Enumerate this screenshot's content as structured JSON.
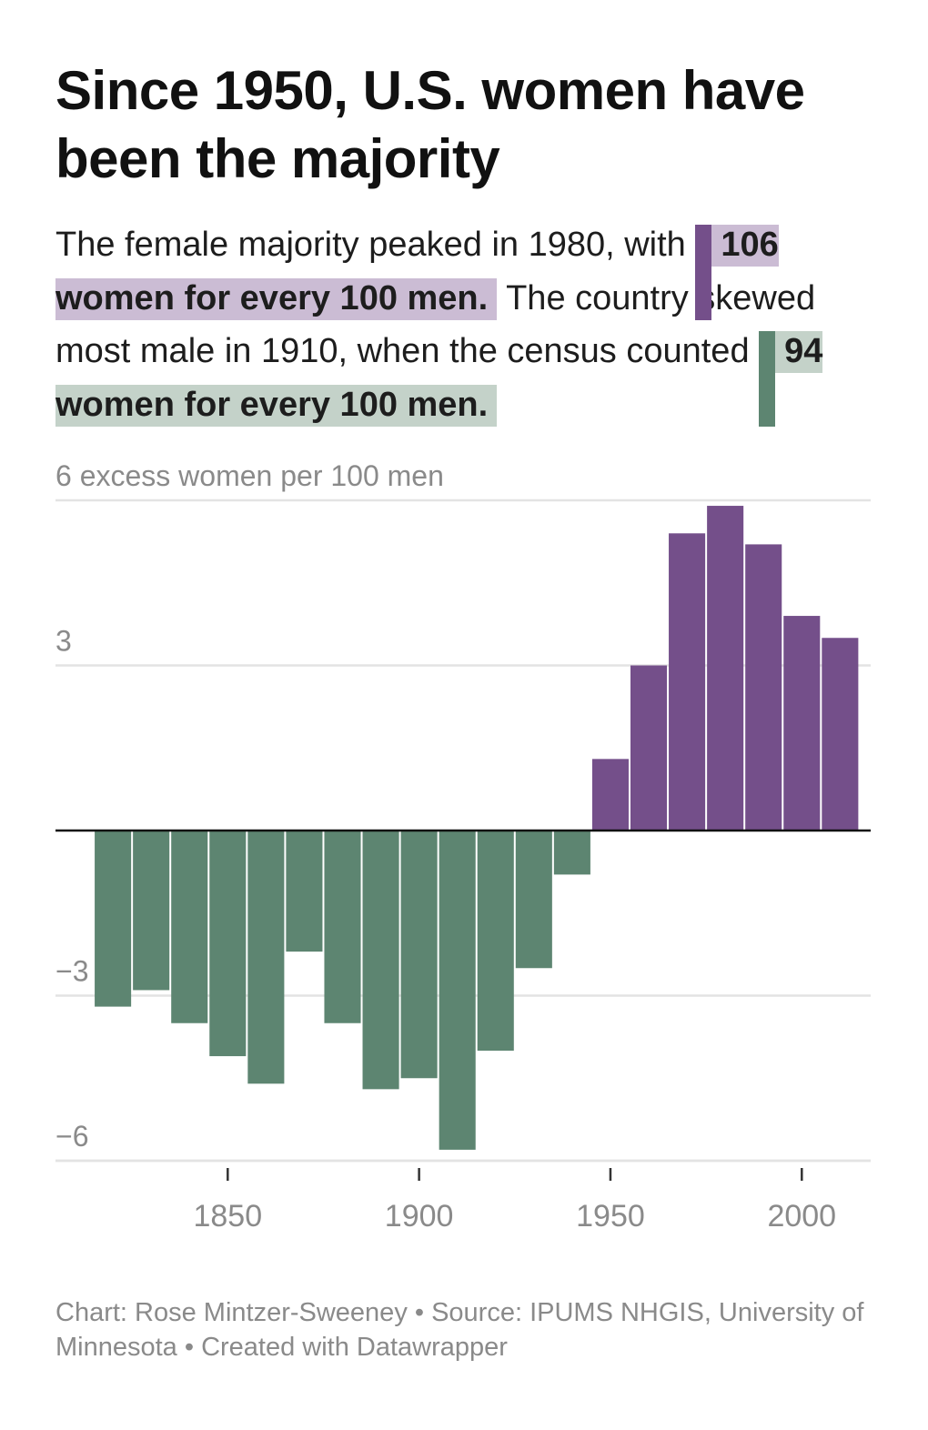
{
  "header": {
    "title": "Since 1950, U.S. women have been the majority",
    "subtitle_part1": "The female majority peaked in 1980, with",
    "highlight_female": "106 women for every 100 men.",
    "subtitle_part2": "The country skewed most male in 1910, when the census counted",
    "highlight_male": "94 women for every 100 men."
  },
  "footer": {
    "notes": "Chart: Rose Mintzer-Sweeney • Source: IPUMS NHGIS, University of Minnesota • Created with Datawrapper"
  },
  "colors": {
    "female": "#744f8a",
    "male": "#5d8571",
    "female_highlight": "#cbbcd4",
    "male_highlight": "#c4d2c9",
    "gridline": "#e3e3e3",
    "axis_text": "#8a8a8a"
  },
  "chart_data": {
    "type": "bar",
    "y_label": "6 excess women per 100 men",
    "ylim": [
      -6.3,
      6
    ],
    "y_ticks": [
      6,
      3,
      -3,
      -6
    ],
    "y_tick_labels": [
      "",
      "3",
      "−3",
      "−6"
    ],
    "x_ticks": [
      1850,
      1900,
      1950,
      2000
    ],
    "x_tick_labels": [
      "1850",
      "1900",
      "1950",
      "2000"
    ],
    "xlim": [
      1805,
      2018
    ],
    "grid": true,
    "bars": [
      {
        "year": 1820,
        "value": -3.2
      },
      {
        "year": 1830,
        "value": -2.9
      },
      {
        "year": 1840,
        "value": -3.5
      },
      {
        "year": 1850,
        "value": -4.1
      },
      {
        "year": 1860,
        "value": -4.6
      },
      {
        "year": 1870,
        "value": -2.2
      },
      {
        "year": 1880,
        "value": -3.5
      },
      {
        "year": 1890,
        "value": -4.7
      },
      {
        "year": 1900,
        "value": -4.5
      },
      {
        "year": 1910,
        "value": -5.8
      },
      {
        "year": 1920,
        "value": -4.0
      },
      {
        "year": 1930,
        "value": -2.5
      },
      {
        "year": 1940,
        "value": -0.8
      },
      {
        "year": 1950,
        "value": 1.3
      },
      {
        "year": 1960,
        "value": 3.0
      },
      {
        "year": 1970,
        "value": 5.4
      },
      {
        "year": 1980,
        "value": 5.9
      },
      {
        "year": 1990,
        "value": 5.2
      },
      {
        "year": 2000,
        "value": 3.9
      },
      {
        "year": 2010,
        "value": 3.5
      }
    ]
  }
}
